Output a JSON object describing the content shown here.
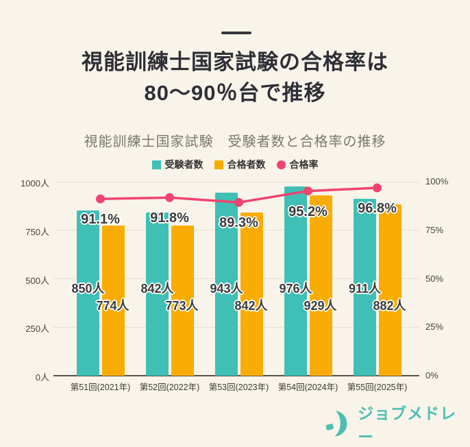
{
  "page": {
    "background": "#f8f4ea"
  },
  "header": {
    "title_line1": "視能訓練士国家試験の合格率は",
    "title_line2": "80～90％台で推移"
  },
  "chart": {
    "title": "視能訓練士国家試験　受験者数と合格率の推移"
  },
  "chart_data": {
    "type": "bar+line",
    "title": "視能訓練士国家試験　受験者数と合格率の推移",
    "categories": [
      "第51回(2021年)",
      "第52回(2022年)",
      "第53回(2023年)",
      "第54回(2024年)",
      "第55回(2025年)"
    ],
    "series": [
      {
        "name": "受験者数",
        "type": "bar",
        "color": "#3fbfb5",
        "values": [
          850,
          842,
          943,
          976,
          911
        ],
        "labels": [
          "850人",
          "842人",
          "943人",
          "976人",
          "911人"
        ]
      },
      {
        "name": "合格者数",
        "type": "bar",
        "color": "#f9ac03",
        "values": [
          774,
          773,
          842,
          929,
          882
        ],
        "labels": [
          "774人",
          "773人",
          "842人",
          "929人",
          "882人"
        ]
      },
      {
        "name": "合格率",
        "type": "line",
        "color": "#f0436f",
        "values": [
          91.1,
          91.8,
          89.3,
          95.2,
          96.8
        ],
        "labels": [
          "91.1%",
          "91.8%",
          "89.3%",
          "95.2%",
          "96.8%"
        ]
      }
    ],
    "y_left": {
      "label_suffix": "人",
      "min": 0,
      "max": 1000,
      "ticks": [
        "1000人",
        "750人",
        "500人",
        "250人",
        "0人"
      ]
    },
    "y_right": {
      "label_suffix": "%",
      "min": 0,
      "max": 100,
      "ticks": [
        "100%",
        "75%",
        "50%",
        "25%",
        "0%"
      ]
    },
    "grid": true,
    "legend_position": "top"
  },
  "footer": {
    "logo_text": "ジョブメドレー",
    "logo_color": "#4cbfb0"
  }
}
